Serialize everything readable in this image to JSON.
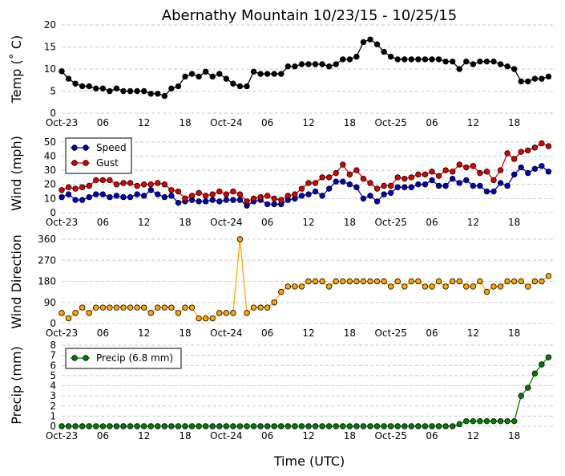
{
  "chart_data": [
    {
      "type": "line",
      "title": "Abernathy Mountain 10/23/15 - 10/25/15",
      "xlabel": "",
      "ylabel": "Temp (˚ C)",
      "ylim": [
        0,
        20
      ],
      "yticks": [
        0,
        5,
        10,
        15,
        20
      ],
      "xticks": [
        "Oct-23",
        "06",
        "12",
        "18",
        "Oct-24",
        "06",
        "12",
        "18",
        "Oct-25",
        "06",
        "12",
        "18"
      ],
      "grid": "horizontal dashed",
      "series": [
        {
          "name": "",
          "color": "#000000",
          "values": [
            9.5,
            7.8,
            6.7,
            6.1,
            6.1,
            5.6,
            5.6,
            5.0,
            5.6,
            5.0,
            5.0,
            5.0,
            5.0,
            4.4,
            4.4,
            3.9,
            5.6,
            6.1,
            8.3,
            8.9,
            8.3,
            9.4,
            8.3,
            8.9,
            7.8,
            6.7,
            6.1,
            6.1,
            9.4,
            8.9,
            8.9,
            8.9,
            8.9,
            10.6,
            10.6,
            11.1,
            11.1,
            11.1,
            11.1,
            10.6,
            11.1,
            12.2,
            12.2,
            12.8,
            16.1,
            16.7,
            15.6,
            13.9,
            12.8,
            12.2,
            12.2,
            12.2,
            12.2,
            12.2,
            12.2,
            12.2,
            11.7,
            11.7,
            10.0,
            11.7,
            11.1,
            11.7,
            11.7,
            11.7,
            11.1,
            10.6,
            10.0,
            7.2,
            7.2,
            7.8,
            7.8,
            8.3
          ]
        }
      ]
    },
    {
      "type": "line",
      "xlabel": "",
      "ylabel": "Wind (mph)",
      "ylim": [
        0,
        55
      ],
      "yticks": [
        0,
        10,
        20,
        30,
        40,
        50
      ],
      "xticks": [
        "Oct-23",
        "06",
        "12",
        "18",
        "Oct-24",
        "06",
        "12",
        "18",
        "Oct-25",
        "06",
        "12",
        "18"
      ],
      "legend": "upper-left",
      "series": [
        {
          "name": "Speed",
          "color": "#0000bb",
          "values": [
            11,
            13,
            9,
            9,
            11,
            13,
            13,
            11,
            12,
            11,
            11,
            13,
            12,
            16,
            13,
            11,
            12,
            7,
            8,
            9,
            8,
            8,
            9,
            8,
            9,
            9,
            9,
            5,
            8,
            9,
            6,
            6,
            6,
            9,
            10,
            12,
            13,
            15,
            12,
            17,
            22,
            22,
            20,
            18,
            10,
            12,
            8,
            13,
            14,
            18,
            18,
            18,
            20,
            20,
            23,
            19,
            19,
            24,
            21,
            23,
            19,
            19,
            15,
            15,
            21,
            19,
            27,
            32,
            28,
            31,
            33,
            29
          ]
        },
        {
          "name": "Gust",
          "color": "#dd0000",
          "values": [
            16,
            18,
            17,
            18,
            19,
            23,
            23,
            23,
            20,
            21,
            21,
            19,
            20,
            20,
            21,
            20,
            16,
            15,
            10,
            12,
            14,
            12,
            13,
            15,
            13,
            15,
            13,
            8,
            10,
            11,
            12,
            10,
            9,
            12,
            13,
            17,
            21,
            21,
            25,
            25,
            28,
            34,
            27,
            30,
            24,
            21,
            17,
            19,
            19,
            25,
            24,
            25,
            27,
            27,
            29,
            26,
            30,
            29,
            34,
            32,
            33,
            28,
            29,
            23,
            30,
            42,
            38,
            43,
            44,
            46,
            49,
            47
          ]
        }
      ]
    },
    {
      "type": "line",
      "xlabel": "",
      "ylabel": "Wind Direction",
      "ylim": [
        0,
        360
      ],
      "yticks": [
        0,
        90,
        180,
        270,
        360
      ],
      "xticks": [
        "Oct-23",
        "06",
        "12",
        "18",
        "Oct-24",
        "06",
        "12",
        "18",
        "Oct-25",
        "06",
        "12",
        "18"
      ],
      "series": [
        {
          "name": "",
          "color": "#ffa500",
          "values": [
            45,
            22,
            45,
            68,
            45,
            68,
            68,
            68,
            68,
            68,
            68,
            68,
            68,
            45,
            68,
            68,
            68,
            45,
            68,
            68,
            22,
            22,
            22,
            45,
            45,
            45,
            360,
            45,
            68,
            68,
            68,
            90,
            135,
            158,
            158,
            158,
            180,
            180,
            180,
            158,
            180,
            180,
            180,
            180,
            180,
            180,
            180,
            180,
            158,
            180,
            158,
            180,
            180,
            158,
            158,
            180,
            158,
            180,
            180,
            158,
            158,
            180,
            135,
            158,
            158,
            180,
            180,
            180,
            158,
            180,
            180,
            203
          ]
        }
      ]
    },
    {
      "type": "line",
      "xlabel": "Time (UTC)",
      "ylabel": "Precip (mm)",
      "ylim": [
        0,
        8
      ],
      "yticks": [
        0,
        1,
        2,
        3,
        4,
        5,
        6,
        7,
        8
      ],
      "xticks": [
        "Oct-23",
        "06",
        "12",
        "18",
        "Oct-24",
        "06",
        "12",
        "18",
        "Oct-25",
        "06",
        "12",
        "18"
      ],
      "legend": "upper-left",
      "series": [
        {
          "name": "Precip (6.8 mm)",
          "color": "#008000",
          "values": [
            0,
            0,
            0,
            0,
            0,
            0,
            0,
            0,
            0,
            0,
            0,
            0,
            0,
            0,
            0,
            0,
            0,
            0,
            0,
            0,
            0,
            0,
            0,
            0,
            0,
            0,
            0,
            0,
            0,
            0,
            0,
            0,
            0,
            0,
            0,
            0,
            0,
            0,
            0,
            0,
            0,
            0,
            0,
            0,
            0,
            0,
            0,
            0,
            0,
            0,
            0,
            0,
            0,
            0,
            0,
            0,
            0,
            0,
            0.2,
            0.5,
            0.5,
            0.5,
            0.5,
            0.5,
            0.5,
            0.5,
            0.5,
            3.0,
            3.8,
            5.2,
            6.1,
            6.8
          ]
        }
      ]
    }
  ]
}
